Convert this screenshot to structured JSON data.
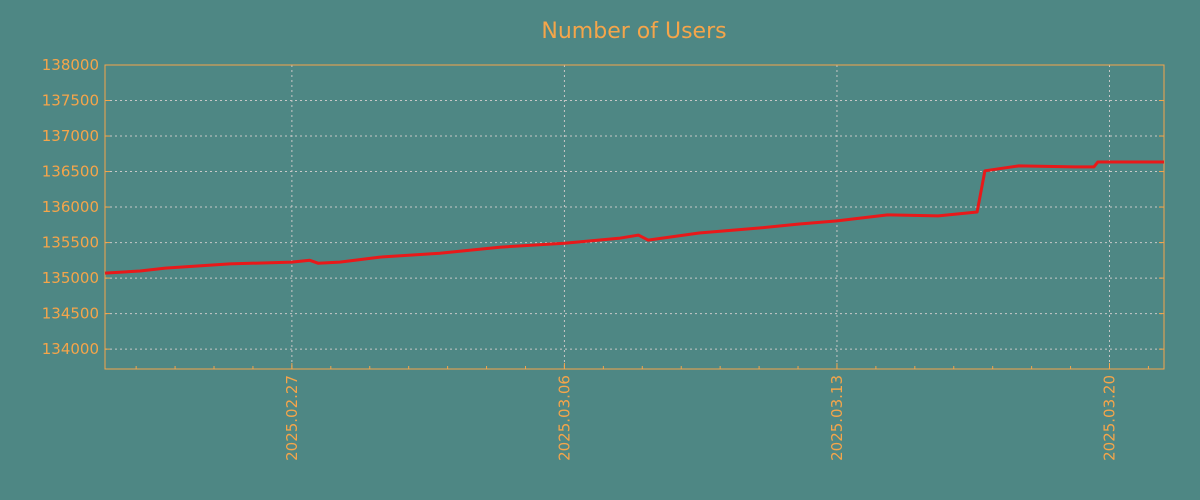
{
  "chart_data": {
    "type": "line",
    "title": "Number of Users",
    "xlabel": "",
    "ylabel": "",
    "x_unit": "days since 2025.02.27",
    "xlim": [
      -4.8,
      22.4
    ],
    "ylim": [
      133720,
      138000
    ],
    "grid": true,
    "colors": {
      "background": "#4e8784",
      "line": "#e8191a",
      "text": "#f5a54a",
      "grid": "#c8c8c8"
    },
    "yticks": [
      134000,
      134500,
      135000,
      135500,
      136000,
      136500,
      137000,
      137500,
      138000
    ],
    "xticks": [
      {
        "value": 0,
        "label": "2025.02.27"
      },
      {
        "value": 7,
        "label": "2025.03.06"
      },
      {
        "value": 14,
        "label": "2025.03.13"
      },
      {
        "value": 21,
        "label": "2025.03.20"
      }
    ],
    "series": [
      {
        "name": "Users",
        "x": [
          -4.8,
          -3.9,
          -3.25,
          -1.6,
          0,
          0.46,
          0.67,
          1.23,
          2.26,
          3.8,
          5.33,
          7,
          8.4,
          8.9,
          9.15,
          10.46,
          12,
          13,
          14,
          15.3,
          16.6,
          17.6,
          17.8,
          18.67,
          20.1,
          20.6,
          20.7,
          22.4
        ],
        "y": [
          135070,
          135100,
          135140,
          135200,
          135225,
          135250,
          135210,
          135225,
          135295,
          135350,
          135435,
          135490,
          135560,
          135605,
          135535,
          135635,
          135705,
          135760,
          135805,
          135890,
          135875,
          135930,
          136510,
          136580,
          136565,
          136565,
          136635,
          136635
        ]
      }
    ]
  }
}
